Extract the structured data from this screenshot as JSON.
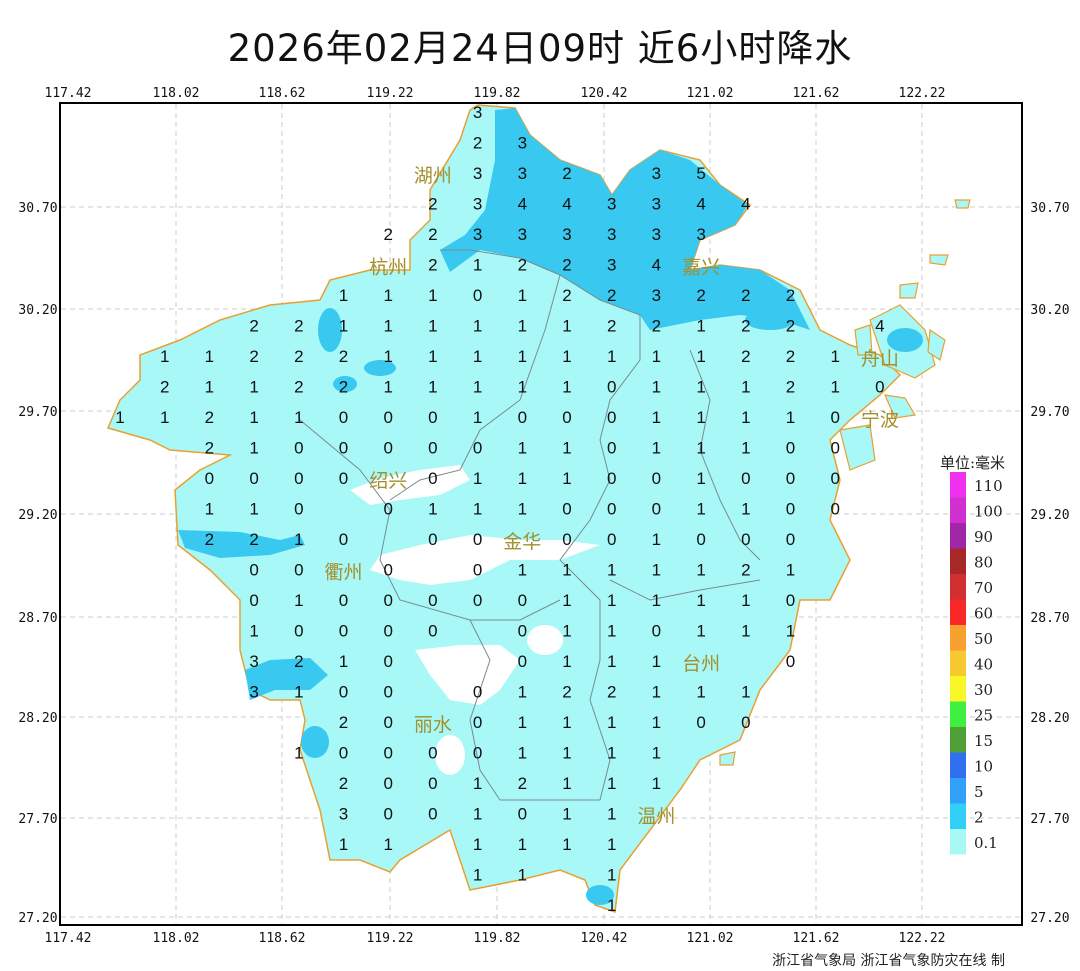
{
  "title": "2026年02月24日09时  近6小时降水",
  "credit": "浙江省气象局 浙江省气象防灾在线 制",
  "axes": {
    "lon_labels": [
      "117.42",
      "118.02",
      "118.62",
      "119.22",
      "119.82",
      "120.42",
      "121.02",
      "121.62",
      "122.22"
    ],
    "lat_labels": [
      "30.70",
      "30.20",
      "29.70",
      "29.20",
      "28.70",
      "28.20",
      "27.70",
      "27.20"
    ]
  },
  "cities": [
    {
      "name": "湖州"
    },
    {
      "name": "嘉兴"
    },
    {
      "name": "杭州"
    },
    {
      "name": "绍兴"
    },
    {
      "name": "宁波"
    },
    {
      "name": "舟山"
    },
    {
      "name": "金华"
    },
    {
      "name": "衢州"
    },
    {
      "name": "台州"
    },
    {
      "name": "丽水"
    },
    {
      "name": "温州"
    }
  ],
  "legend": {
    "unit": "单位:毫米",
    "bins": [
      {
        "label": "110",
        "color": "#f030f0"
      },
      {
        "label": "100",
        "color": "#d030d0"
      },
      {
        "label": "90",
        "color": "#a028a8"
      },
      {
        "label": "80",
        "color": "#a82828"
      },
      {
        "label": "70",
        "color": "#d03030"
      },
      {
        "label": "60",
        "color": "#f82828"
      },
      {
        "label": "50",
        "color": "#f8a030"
      },
      {
        "label": "40",
        "color": "#f8c830"
      },
      {
        "label": "30",
        "color": "#f8f828"
      },
      {
        "label": "25",
        "color": "#40f040"
      },
      {
        "label": "15",
        "color": "#50a038"
      },
      {
        "label": "10",
        "color": "#3070f0"
      },
      {
        "label": "5",
        "color": "#30a0f8"
      },
      {
        "label": "2",
        "color": "#30d0f8"
      },
      {
        "label": "0.1",
        "color": "#a8f8f8"
      }
    ]
  },
  "colors": {
    "light_rain": "#a8f8f8",
    "rain_2mm": "#38c8f0",
    "boundary": "#e8a030",
    "county_line": "#7a8a90"
  },
  "station_grid": [
    [
      null,
      null,
      null,
      null,
      null,
      null,
      null,
      null,
      "3"
    ],
    [
      null,
      null,
      null,
      null,
      null,
      null,
      null,
      null,
      "2",
      "3"
    ],
    [
      null,
      null,
      null,
      null,
      null,
      null,
      null,
      null,
      "3",
      "3",
      "2",
      null,
      "3",
      "5"
    ],
    [
      null,
      null,
      null,
      null,
      null,
      null,
      null,
      "2",
      "3",
      "4",
      "4",
      "3",
      "3",
      "4",
      "4"
    ],
    [
      null,
      null,
      null,
      null,
      null,
      null,
      "2",
      "2",
      "3",
      "3",
      "3",
      "3",
      "3",
      "3"
    ],
    [
      null,
      null,
      null,
      null,
      null,
      null,
      null,
      "2",
      "1",
      "2",
      "2",
      "3",
      "4"
    ],
    [
      null,
      null,
      null,
      null,
      null,
      "1",
      "1",
      "1",
      "0",
      "1",
      "2",
      "2",
      "3",
      "2",
      "2",
      "2"
    ],
    [
      null,
      null,
      null,
      "2",
      "2",
      "1",
      "1",
      "1",
      "1",
      "1",
      "1",
      "2",
      "2",
      "1",
      "2",
      "2",
      null,
      "4"
    ],
    [
      null,
      "1",
      "1",
      "2",
      "2",
      "2",
      "1",
      "1",
      "1",
      "1",
      "1",
      "1",
      "1",
      "1",
      "2",
      "2",
      "1"
    ],
    [
      null,
      "2",
      "1",
      "1",
      "2",
      "2",
      "1",
      "1",
      "1",
      "1",
      "1",
      "0",
      "1",
      "1",
      "1",
      "2",
      "1",
      "0"
    ],
    [
      "1",
      "1",
      "2",
      "1",
      "1",
      "0",
      "0",
      "0",
      "1",
      "0",
      "0",
      "0",
      "1",
      "1",
      "1",
      "1",
      "0"
    ],
    [
      null,
      null,
      "2",
      "1",
      "0",
      "0",
      "0",
      "0",
      "0",
      "1",
      "1",
      "0",
      "1",
      "1",
      "1",
      "0",
      "0"
    ],
    [
      null,
      null,
      "0",
      "0",
      "0",
      "0",
      null,
      "0",
      "1",
      "1",
      "1",
      "0",
      "0",
      "1",
      "0",
      "0",
      "0"
    ],
    [
      null,
      null,
      "1",
      "1",
      "0",
      null,
      "0",
      "1",
      "1",
      "1",
      "0",
      "0",
      "0",
      "1",
      "1",
      "0",
      "0"
    ],
    [
      null,
      null,
      "2",
      "2",
      "1",
      "0",
      null,
      "0",
      "0",
      null,
      "0",
      "0",
      "1",
      "0",
      "0",
      "0"
    ],
    [
      null,
      null,
      null,
      "0",
      "0",
      null,
      "0",
      null,
      "0",
      "1",
      "1",
      "1",
      "1",
      "1",
      "2",
      "1"
    ],
    [
      null,
      null,
      null,
      "0",
      "1",
      "0",
      "0",
      "0",
      "0",
      "0",
      "1",
      "1",
      "1",
      "1",
      "1",
      "0"
    ],
    [
      null,
      null,
      null,
      "1",
      "0",
      "0",
      "0",
      "0",
      null,
      "0",
      "1",
      "1",
      "0",
      "1",
      "1",
      "1"
    ],
    [
      null,
      null,
      null,
      "3",
      "2",
      "1",
      "0",
      null,
      null,
      "0",
      "1",
      "1",
      "1",
      null,
      null,
      "0"
    ],
    [
      null,
      null,
      null,
      "3",
      "1",
      "0",
      "0",
      null,
      "0",
      "1",
      "2",
      "2",
      "1",
      "1",
      "1"
    ],
    [
      null,
      null,
      null,
      null,
      null,
      "2",
      "0",
      null,
      "0",
      "1",
      "1",
      "1",
      "1",
      "0",
      "0"
    ],
    [
      null,
      null,
      null,
      null,
      "1",
      "0",
      "0",
      "0",
      "0",
      "1",
      "1",
      "1",
      "1"
    ],
    [
      null,
      null,
      null,
      null,
      null,
      "2",
      "0",
      "0",
      "1",
      "2",
      "1",
      "1",
      "1"
    ],
    [
      null,
      null,
      null,
      null,
      null,
      "3",
      "0",
      "0",
      "1",
      "0",
      "1",
      "1"
    ],
    [
      null,
      null,
      null,
      null,
      null,
      "1",
      "1",
      null,
      "1",
      "1",
      "1",
      "1"
    ],
    [
      null,
      null,
      null,
      null,
      null,
      null,
      null,
      null,
      "1",
      "1",
      null,
      "1"
    ],
    [
      null,
      null,
      null,
      null,
      null,
      null,
      null,
      null,
      null,
      null,
      null,
      "1"
    ]
  ]
}
